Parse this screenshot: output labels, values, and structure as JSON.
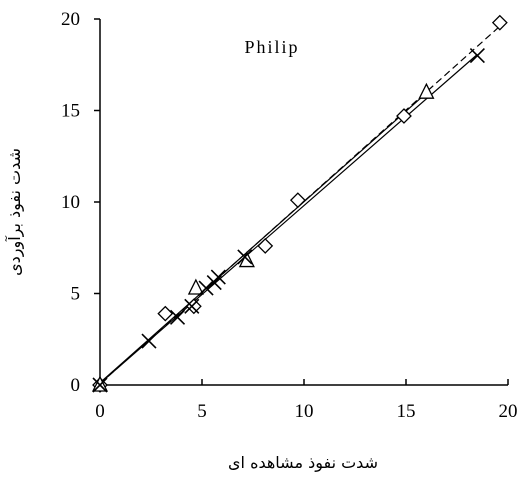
{
  "chart_data": {
    "type": "scatter",
    "title": "Philip",
    "xlabel": "شدت نفوذ مشاهده ای",
    "ylabel": "شدت نفوذ برآوردی",
    "xlim": [
      0,
      20
    ],
    "ylim": [
      0,
      20
    ],
    "xticks": [
      "0",
      "5",
      "10",
      "15",
      "20"
    ],
    "yticks": [
      "0",
      "5",
      "10",
      "15",
      "20"
    ],
    "grid": false,
    "legend": "none",
    "series": [
      {
        "marker": "diamond",
        "line": "dashed",
        "points": [
          [
            0,
            0
          ],
          [
            3.2,
            3.9
          ],
          [
            4.6,
            4.3
          ],
          [
            8.1,
            7.6
          ],
          [
            9.7,
            10.1
          ],
          [
            14.9,
            14.7
          ],
          [
            19.6,
            19.8
          ]
        ]
      },
      {
        "marker": "triangle",
        "line": "solid",
        "points": [
          [
            0,
            0
          ],
          [
            4.7,
            5.3
          ],
          [
            7.2,
            6.8
          ],
          [
            16,
            16
          ]
        ]
      },
      {
        "marker": "cross",
        "line": "solid",
        "points": [
          [
            0,
            0
          ],
          [
            2.4,
            2.4
          ],
          [
            3.8,
            3.7
          ],
          [
            4.5,
            4.3
          ],
          [
            5.2,
            5.3
          ],
          [
            5.6,
            5.6
          ],
          [
            5.8,
            5.9
          ],
          [
            7.1,
            7
          ],
          [
            18.5,
            18
          ]
        ]
      }
    ],
    "colors": {
      "marks": "#000000",
      "background": "#ffffff"
    }
  }
}
